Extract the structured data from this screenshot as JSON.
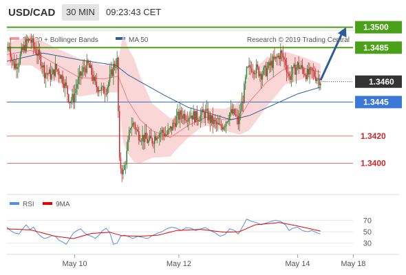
{
  "header": {
    "pair": "USD/CAD",
    "timeframe": "30 MIN",
    "time": "09:23:43 CET"
  },
  "legend": {
    "bollinger": "MA 20 + Bollinger Bands",
    "ma50": "MA 50",
    "credit": "Research © 2019 Trading Central",
    "rsi": "RSI",
    "ma9": "9MA"
  },
  "colors": {
    "price_up": "#2e7d32",
    "price_down": "#c62828",
    "bollinger_band": "#f8c9c9",
    "ma20": "#ef7d7d",
    "ma50": "#2d5f9a",
    "target_line": "#4aa016",
    "pivot_line": "#3c78d8",
    "support_line": "#e57373",
    "rsi": "#5b8dd9",
    "rsi_ma": "#e00000",
    "current_price": "#333333",
    "arrow": "#2c5d96"
  },
  "chart_data": [
    {
      "type": "candlestick",
      "y_range": [
        1.3377,
        1.3518
      ],
      "x_tick_labels": [
        {
          "text": "May 10",
          "slot": 56
        },
        {
          "text": "May 12",
          "slot": 142
        },
        {
          "text": "May 14",
          "slot": 240
        },
        {
          "text": "May 18",
          "slot": 286
        }
      ],
      "x_slots": 300,
      "price_anchors": [
        [
          0,
          1.3483
        ],
        [
          2,
          1.3488
        ],
        [
          4,
          1.3476
        ],
        [
          6,
          1.3472
        ],
        [
          9,
          1.3474
        ],
        [
          12,
          1.3481
        ],
        [
          16,
          1.3488
        ],
        [
          19,
          1.3491
        ],
        [
          22,
          1.3486
        ],
        [
          25,
          1.3481
        ],
        [
          28,
          1.3476
        ],
        [
          31,
          1.3467
        ],
        [
          34,
          1.3466
        ],
        [
          37,
          1.3464
        ],
        [
          40,
          1.347
        ],
        [
          43,
          1.3467
        ],
        [
          46,
          1.3462
        ],
        [
          49,
          1.3455
        ],
        [
          52,
          1.3446
        ],
        [
          55,
          1.3448
        ],
        [
          58,
          1.3459
        ],
        [
          61,
          1.3465
        ],
        [
          64,
          1.347
        ],
        [
          67,
          1.3472
        ],
        [
          70,
          1.3466
        ],
        [
          73,
          1.3457
        ],
        [
          76,
          1.3456
        ],
        [
          79,
          1.3453
        ],
        [
          82,
          1.3455
        ],
        [
          85,
          1.3462
        ],
        [
          88,
          1.3471
        ],
        [
          91,
          1.3475
        ],
        [
          93,
          1.34
        ],
        [
          96,
          1.3393
        ],
        [
          99,
          1.3407
        ],
        [
          102,
          1.3428
        ],
        [
          105,
          1.3429
        ],
        [
          108,
          1.3422
        ],
        [
          111,
          1.342
        ],
        [
          114,
          1.3418
        ],
        [
          117,
          1.3416
        ],
        [
          120,
          1.3417
        ],
        [
          124,
          1.3422
        ],
        [
          128,
          1.3423
        ],
        [
          132,
          1.3421
        ],
        [
          136,
          1.3426
        ],
        [
          140,
          1.3433
        ],
        [
          144,
          1.3436
        ],
        [
          148,
          1.3435
        ],
        [
          152,
          1.3436
        ],
        [
          156,
          1.3434
        ],
        [
          160,
          1.3435
        ],
        [
          164,
          1.3437
        ],
        [
          168,
          1.3432
        ],
        [
          172,
          1.3429
        ],
        [
          176,
          1.3426
        ],
        [
          180,
          1.343
        ],
        [
          184,
          1.3437
        ],
        [
          188,
          1.3436
        ],
        [
          191,
          1.343
        ],
        [
          195,
          1.3448
        ],
        [
          198,
          1.3467
        ],
        [
          202,
          1.3471
        ],
        [
          206,
          1.3469
        ],
        [
          210,
          1.3466
        ],
        [
          214,
          1.3468
        ],
        [
          218,
          1.3473
        ],
        [
          222,
          1.3476
        ],
        [
          226,
          1.3481
        ],
        [
          230,
          1.3474
        ],
        [
          233,
          1.3463
        ],
        [
          236,
          1.3467
        ],
        [
          240,
          1.3472
        ],
        [
          244,
          1.3469
        ],
        [
          248,
          1.3465
        ],
        [
          252,
          1.3467
        ],
        [
          256,
          1.3463
        ],
        [
          259,
          1.3461
        ]
      ],
      "ma20_anchors": [
        [
          0,
          1.348
        ],
        [
          20,
          1.3483
        ],
        [
          40,
          1.3473
        ],
        [
          60,
          1.3463
        ],
        [
          80,
          1.3462
        ],
        [
          92,
          1.3464
        ],
        [
          100,
          1.3446
        ],
        [
          110,
          1.3432
        ],
        [
          120,
          1.3424
        ],
        [
          135,
          1.3419
        ],
        [
          150,
          1.3428
        ],
        [
          165,
          1.3434
        ],
        [
          180,
          1.3432
        ],
        [
          192,
          1.3433
        ],
        [
          200,
          1.3445
        ],
        [
          215,
          1.346
        ],
        [
          230,
          1.347
        ],
        [
          245,
          1.347
        ],
        [
          259,
          1.3467
        ]
      ],
      "band_width_anchors": [
        [
          0,
          0.0008
        ],
        [
          20,
          0.0011
        ],
        [
          40,
          0.0012
        ],
        [
          60,
          0.0014
        ],
        [
          80,
          0.001
        ],
        [
          92,
          0.0012
        ],
        [
          96,
          0.004
        ],
        [
          105,
          0.0038
        ],
        [
          120,
          0.002
        ],
        [
          140,
          0.0012
        ],
        [
          160,
          0.0006
        ],
        [
          180,
          0.0008
        ],
        [
          192,
          0.0012
        ],
        [
          200,
          0.0021
        ],
        [
          215,
          0.0018
        ],
        [
          230,
          0.0012
        ],
        [
          245,
          0.0008
        ],
        [
          259,
          0.0006
        ]
      ],
      "ma50_anchors": [
        [
          0,
          1.3475
        ],
        [
          30,
          1.3481
        ],
        [
          60,
          1.3476
        ],
        [
          90,
          1.3472
        ],
        [
          100,
          1.3465
        ],
        [
          130,
          1.345
        ],
        [
          150,
          1.3441
        ],
        [
          170,
          1.3436
        ],
        [
          185,
          1.3432
        ],
        [
          200,
          1.3435
        ],
        [
          220,
          1.3443
        ],
        [
          240,
          1.3451
        ],
        [
          259,
          1.3456
        ]
      ],
      "horizontal_levels": [
        {
          "value": 1.35,
          "label": "1.3500",
          "kind": "target"
        },
        {
          "value": 1.3485,
          "label": "1.3485",
          "kind": "target"
        },
        {
          "value": 1.346,
          "label": "1.3460",
          "kind": "current"
        },
        {
          "value": 1.3445,
          "label": "1.3445",
          "kind": "pivot"
        },
        {
          "value": 1.342,
          "label": "1.3420",
          "kind": "support"
        },
        {
          "value": 1.34,
          "label": "1.3400",
          "kind": "support"
        }
      ],
      "arrow": {
        "from_slot": 259,
        "from": 1.3461,
        "to_slot": 280,
        "to": 1.35
      }
    },
    {
      "type": "line",
      "title": "RSI",
      "y_range": [
        20,
        80
      ],
      "y_ticks": [
        "70",
        "50",
        "30"
      ],
      "rsi_anchors": [
        [
          0,
          58
        ],
        [
          3,
          52
        ],
        [
          6,
          48
        ],
        [
          10,
          46
        ],
        [
          13,
          55
        ],
        [
          16,
          62
        ],
        [
          19,
          54
        ],
        [
          22,
          58
        ],
        [
          25,
          48
        ],
        [
          28,
          42
        ],
        [
          31,
          38
        ],
        [
          34,
          40
        ],
        [
          37,
          43
        ],
        [
          40,
          42
        ],
        [
          43,
          35
        ],
        [
          46,
          32
        ],
        [
          49,
          28
        ],
        [
          52,
          38
        ],
        [
          55,
          48
        ],
        [
          58,
          52
        ],
        [
          61,
          55
        ],
        [
          64,
          48
        ],
        [
          67,
          44
        ],
        [
          70,
          42
        ],
        [
          73,
          38
        ],
        [
          76,
          44
        ],
        [
          79,
          52
        ],
        [
          82,
          56
        ],
        [
          85,
          48
        ],
        [
          88,
          28
        ],
        [
          91,
          30
        ],
        [
          94,
          42
        ],
        [
          97,
          44
        ],
        [
          100,
          42
        ],
        [
          104,
          38
        ],
        [
          108,
          42
        ],
        [
          112,
          40
        ],
        [
          116,
          38
        ],
        [
          120,
          43
        ],
        [
          124,
          47
        ],
        [
          128,
          50
        ],
        [
          132,
          55
        ],
        [
          136,
          58
        ],
        [
          140,
          56
        ],
        [
          144,
          52
        ],
        [
          148,
          57
        ],
        [
          152,
          56
        ],
        [
          156,
          52
        ],
        [
          160,
          55
        ],
        [
          164,
          57
        ],
        [
          168,
          52
        ],
        [
          172,
          48
        ],
        [
          176,
          42
        ],
        [
          180,
          45
        ],
        [
          184,
          55
        ],
        [
          188,
          52
        ],
        [
          191,
          46
        ],
        [
          195,
          60
        ],
        [
          198,
          72
        ],
        [
          202,
          68
        ],
        [
          206,
          66
        ],
        [
          210,
          62
        ],
        [
          214,
          65
        ],
        [
          218,
          68
        ],
        [
          222,
          70
        ],
        [
          226,
          68
        ],
        [
          230,
          62
        ],
        [
          233,
          52
        ],
        [
          236,
          56
        ],
        [
          240,
          58
        ],
        [
          244,
          52
        ],
        [
          248,
          50
        ],
        [
          252,
          52
        ],
        [
          256,
          48
        ],
        [
          259,
          46
        ]
      ],
      "ma9_anchors": [
        [
          0,
          55
        ],
        [
          20,
          53
        ],
        [
          40,
          42
        ],
        [
          55,
          38
        ],
        [
          70,
          47
        ],
        [
          85,
          49
        ],
        [
          95,
          43
        ],
        [
          110,
          42
        ],
        [
          125,
          44
        ],
        [
          140,
          52
        ],
        [
          160,
          54
        ],
        [
          180,
          49
        ],
        [
          192,
          50
        ],
        [
          205,
          62
        ],
        [
          225,
          66
        ],
        [
          240,
          60
        ],
        [
          259,
          51
        ]
      ]
    }
  ]
}
